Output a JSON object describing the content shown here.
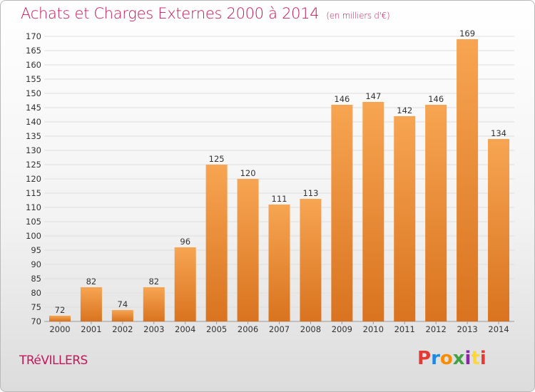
{
  "header": {
    "title": "Achats et Charges Externes 2000 à 2014",
    "subtitle": "(en milliers d'€)"
  },
  "footer": {
    "commune": "TRéVILLERS",
    "brand": "Proxiti"
  },
  "colors": {
    "title": "#c2185b",
    "bar_top": "#f7a552",
    "bar_bottom": "#d9731f",
    "brand_letters": [
      "#e53935",
      "#1e88e5",
      "#fb8c00",
      "#43a047",
      "#8e24aa",
      "#fdd835",
      "#e53935"
    ]
  },
  "chart_data": {
    "type": "bar",
    "title": "Achats et Charges Externes 2000 à 2014",
    "subtitle": "(en milliers d'€)",
    "categories": [
      "2000",
      "2001",
      "2002",
      "2003",
      "2004",
      "2005",
      "2006",
      "2007",
      "2008",
      "2009",
      "2010",
      "2011",
      "2012",
      "2013",
      "2014"
    ],
    "values": [
      72,
      82,
      74,
      82,
      96,
      125,
      120,
      111,
      113,
      146,
      147,
      142,
      146,
      169,
      134
    ],
    "ylim": [
      70,
      170
    ],
    "yticks": [
      70,
      75,
      80,
      85,
      90,
      95,
      100,
      105,
      110,
      115,
      120,
      125,
      130,
      135,
      140,
      145,
      150,
      155,
      160,
      165,
      170
    ],
    "grid": true,
    "data_labels": true
  }
}
